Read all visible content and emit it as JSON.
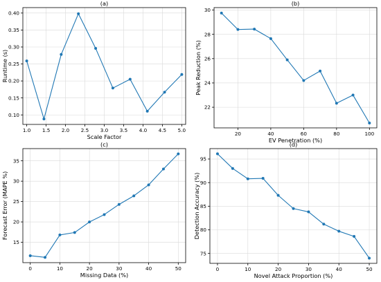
{
  "style": {
    "line_color": "#1f77b4",
    "grid_color": "#d9d9d9",
    "axis_color": "#000000"
  },
  "chart_data": [
    {
      "type": "line",
      "title": "(a)",
      "xlabel": "Scale Factor",
      "ylabel": "Runtime (s)",
      "xlim": [
        0.9,
        5.1
      ],
      "ylim": [
        0.072,
        0.416
      ],
      "xticks": [
        1.0,
        1.5,
        2.0,
        2.5,
        3.0,
        3.5,
        4.0,
        4.5,
        5.0
      ],
      "xtick_labels": [
        "1.0",
        "1.5",
        "2.0",
        "2.5",
        "3.0",
        "3.5",
        "4.0",
        "4.5",
        "5.0"
      ],
      "yticks": [
        0.1,
        0.15,
        0.2,
        0.25,
        0.3,
        0.35,
        0.4
      ],
      "ytick_labels": [
        "0.10",
        "0.15",
        "0.20",
        "0.25",
        "0.30",
        "0.35",
        "0.40"
      ],
      "grid": true,
      "x": [
        1.0,
        1.444,
        1.889,
        2.333,
        2.778,
        3.222,
        3.667,
        4.111,
        4.556,
        5.0
      ],
      "y": [
        0.259,
        0.088,
        0.278,
        0.398,
        0.296,
        0.179,
        0.205,
        0.111,
        0.167,
        0.219
      ]
    },
    {
      "type": "line",
      "title": "(b)",
      "xlabel": "EV Penetration (%)",
      "ylabel": "Peak Reduction (%)",
      "xlim": [
        5.5,
        104.5
      ],
      "ylim": [
        20.3,
        30.2
      ],
      "xticks": [
        20,
        40,
        60,
        80,
        100
      ],
      "xtick_labels": [
        "20",
        "40",
        "60",
        "80",
        "100"
      ],
      "yticks": [
        22,
        24,
        26,
        28,
        30
      ],
      "ytick_labels": [
        "22",
        "24",
        "26",
        "28",
        "30"
      ],
      "grid": true,
      "x": [
        10,
        20,
        30,
        40,
        50,
        60,
        70,
        80,
        90,
        100
      ],
      "y": [
        29.75,
        28.4,
        28.43,
        27.65,
        25.9,
        24.2,
        24.98,
        22.33,
        23.0,
        20.7
      ]
    },
    {
      "type": "line",
      "title": "(c)",
      "xlabel": "Missing Data (%)",
      "ylabel": "Forecast Error (MAPE %)",
      "xlim": [
        -2.5,
        52.5
      ],
      "ylim": [
        10.0,
        38.0
      ],
      "xticks": [
        0,
        10,
        20,
        30,
        40,
        50
      ],
      "xtick_labels": [
        "0",
        "10",
        "20",
        "30",
        "40",
        "50"
      ],
      "yticks": [
        15,
        20,
        25,
        30,
        35
      ],
      "ytick_labels": [
        "15",
        "20",
        "25",
        "30",
        "35"
      ],
      "grid": true,
      "x": [
        0,
        5,
        10,
        15,
        20,
        25,
        30,
        35,
        40,
        45,
        50
      ],
      "y": [
        11.7,
        11.3,
        16.8,
        17.4,
        20.0,
        21.8,
        24.3,
        26.4,
        29.1,
        33.0,
        36.7
      ]
    },
    {
      "type": "line",
      "title": "(d)",
      "xlabel": "Novel Attack Proportion (%)",
      "ylabel": "Detection Accuracy (%)",
      "xlim": [
        -2.5,
        52.5
      ],
      "ylim": [
        72.9,
        97.2
      ],
      "xticks": [
        0,
        10,
        20,
        30,
        40,
        50
      ],
      "xtick_labels": [
        "0",
        "10",
        "20",
        "30",
        "40",
        "50"
      ],
      "yticks": [
        75,
        80,
        85,
        90,
        95
      ],
      "ytick_labels": [
        "75",
        "80",
        "85",
        "90",
        "95"
      ],
      "grid": true,
      "x": [
        0,
        5,
        10,
        15,
        20,
        25,
        30,
        35,
        40,
        45,
        50
      ],
      "y": [
        96.1,
        93.0,
        90.8,
        90.9,
        87.3,
        84.5,
        83.8,
        81.2,
        79.7,
        78.6,
        74.0
      ]
    }
  ]
}
